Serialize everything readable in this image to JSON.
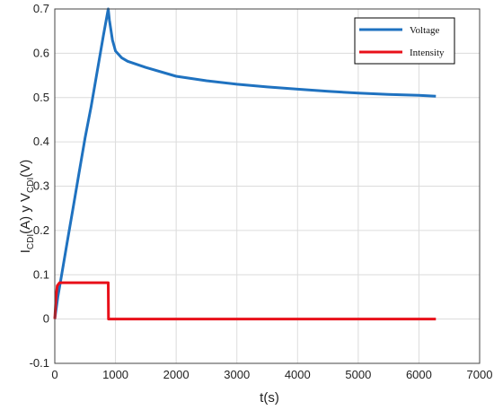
{
  "chart_data": {
    "type": "line",
    "xlabel": "t(s)",
    "ylabel": {
      "parts": [
        "I",
        "CDI",
        "(A)  y  V",
        "CDI",
        "(V)"
      ]
    },
    "xlim": [
      0,
      7000
    ],
    "ylim": [
      -0.1,
      0.7
    ],
    "xticks": [
      0,
      1000,
      2000,
      3000,
      4000,
      5000,
      6000,
      7000
    ],
    "yticks": [
      -0.1,
      0,
      0.1,
      0.2,
      0.3,
      0.4,
      0.5,
      0.6,
      0.7
    ],
    "xtick_labels": [
      "0",
      "1000",
      "2000",
      "3000",
      "4000",
      "5000",
      "6000",
      "7000"
    ],
    "ytick_labels": [
      "-0.1",
      "0",
      "0.1",
      "0.2",
      "0.3",
      "0.4",
      "0.5",
      "0.6",
      "0.7"
    ],
    "grid": true,
    "legend_position": "top-right",
    "series": [
      {
        "name": "Voltage",
        "color": "#1f72c0",
        "points": [
          [
            0,
            0.0
          ],
          [
            50,
            0.05
          ],
          [
            100,
            0.09
          ],
          [
            200,
            0.17
          ],
          [
            300,
            0.25
          ],
          [
            400,
            0.33
          ],
          [
            500,
            0.41
          ],
          [
            600,
            0.48
          ],
          [
            700,
            0.56
          ],
          [
            800,
            0.64
          ],
          [
            880,
            0.7
          ],
          [
            900,
            0.675
          ],
          [
            950,
            0.63
          ],
          [
            1000,
            0.605
          ],
          [
            1100,
            0.59
          ],
          [
            1200,
            0.582
          ],
          [
            1500,
            0.568
          ],
          [
            2000,
            0.548
          ],
          [
            2500,
            0.538
          ],
          [
            3000,
            0.53
          ],
          [
            3500,
            0.524
          ],
          [
            4000,
            0.519
          ],
          [
            4500,
            0.514
          ],
          [
            5000,
            0.51
          ],
          [
            5500,
            0.507
          ],
          [
            6000,
            0.505
          ],
          [
            6280,
            0.503
          ]
        ]
      },
      {
        "name": "Intensity",
        "color": "#e8101a",
        "points": [
          [
            0,
            0.0
          ],
          [
            20,
            0.05
          ],
          [
            40,
            0.075
          ],
          [
            80,
            0.082
          ],
          [
            880,
            0.082
          ],
          [
            885,
            0.0
          ],
          [
            6280,
            0.0
          ]
        ]
      }
    ]
  }
}
